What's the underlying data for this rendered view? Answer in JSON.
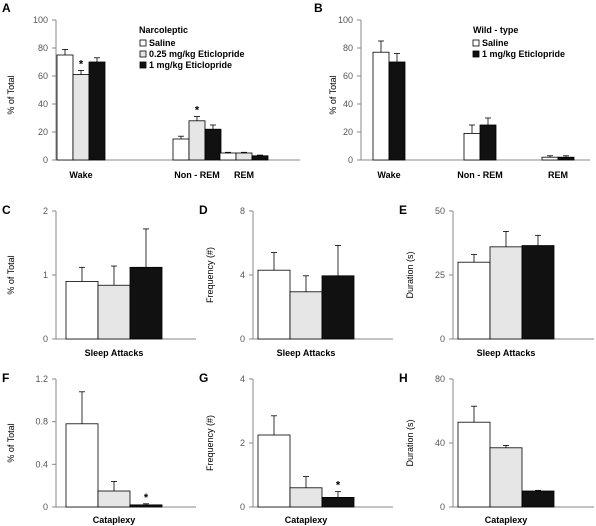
{
  "colors": {
    "saline": "#ffffff",
    "low_dose": "#e6e6e6",
    "high_dose": "#111111",
    "axis": "#888888"
  },
  "chart_data": [
    {
      "panel": "A",
      "type": "bar",
      "categories": [
        "Wake",
        "Non - REM",
        "REM"
      ],
      "ylabel": "% of Total",
      "ylim": [
        0,
        100
      ],
      "yticks": [
        "0",
        "20",
        "40",
        "60",
        "80",
        "100"
      ],
      "legend": {
        "title": "Narcoleptic",
        "placement": "top-right",
        "labels": [
          "Saline",
          "0.25 mg/kg Eticlopride",
          "1 mg/kg Eticlopride"
        ]
      },
      "series": [
        {
          "name": "Saline",
          "values": [
            75,
            15,
            5
          ],
          "errors": [
            4,
            2,
            0.5
          ]
        },
        {
          "name": "0.25 mg/kg Eticlopride",
          "values": [
            61,
            28,
            5
          ],
          "errors": [
            3,
            3,
            0.5
          ]
        },
        {
          "name": "1 mg/kg Eticlopride",
          "values": [
            70,
            22,
            3
          ],
          "errors": [
            3,
            3,
            0.5
          ]
        }
      ],
      "annotations": [
        {
          "text": "*",
          "category": 0,
          "series": 1
        },
        {
          "text": "*",
          "category": 1,
          "series": 1
        }
      ]
    },
    {
      "panel": "B",
      "type": "bar",
      "categories": [
        "Wake",
        "Non - REM",
        "REM"
      ],
      "ylabel": "% of Total",
      "ylim": [
        0,
        100
      ],
      "yticks": [
        "0",
        "20",
        "40",
        "60",
        "80",
        "100"
      ],
      "legend": {
        "title": "Wild - type",
        "placement": "top-right",
        "labels": [
          "Saline",
          "1 mg/kg Eticlopride"
        ]
      },
      "series": [
        {
          "name": "Saline",
          "values": [
            77,
            19,
            2
          ],
          "errors": [
            8,
            6,
            1
          ]
        },
        {
          "name": "1 mg/kg Eticlopride",
          "values": [
            70,
            25,
            2
          ],
          "errors": [
            6,
            5,
            1
          ]
        }
      ],
      "annotations": []
    },
    {
      "panel": "C",
      "type": "bar",
      "categories": [
        "Sleep Attacks"
      ],
      "ylabel": "% of Total",
      "ylim": [
        0,
        2
      ],
      "yticks": [
        "0",
        "1",
        "2"
      ],
      "series": [
        {
          "name": "Saline",
          "values": [
            0.9
          ],
          "errors": [
            0.22
          ]
        },
        {
          "name": "0.25 mg/kg Eticlopride",
          "values": [
            0.84
          ],
          "errors": [
            0.3
          ]
        },
        {
          "name": "1 mg/kg Eticlopride",
          "values": [
            1.12
          ],
          "errors": [
            0.6
          ]
        }
      ],
      "annotations": []
    },
    {
      "panel": "D",
      "type": "bar",
      "categories": [
        "Sleep Attacks"
      ],
      "ylabel": "Frequency (#)",
      "ylim": [
        0,
        8
      ],
      "yticks": [
        "0",
        "4",
        "8"
      ],
      "series": [
        {
          "name": "Saline",
          "values": [
            4.3
          ],
          "errors": [
            1.1
          ]
        },
        {
          "name": "0.25 mg/kg Eticlopride",
          "values": [
            2.95
          ],
          "errors": [
            1.0
          ]
        },
        {
          "name": "1 mg/kg Eticlopride",
          "values": [
            3.95
          ],
          "errors": [
            1.9
          ]
        }
      ],
      "annotations": []
    },
    {
      "panel": "E",
      "type": "bar",
      "categories": [
        "Sleep Attacks"
      ],
      "ylabel": "Duration (s)",
      "ylim": [
        0,
        50
      ],
      "yticks": [
        "0",
        "25",
        "50"
      ],
      "series": [
        {
          "name": "Saline",
          "values": [
            30
          ],
          "errors": [
            3
          ]
        },
        {
          "name": "0.25 mg/kg Eticlopride",
          "values": [
            36
          ],
          "errors": [
            6
          ]
        },
        {
          "name": "1 mg/kg Eticlopride",
          "values": [
            36.5
          ],
          "errors": [
            4
          ]
        }
      ],
      "annotations": []
    },
    {
      "panel": "F",
      "type": "bar",
      "categories": [
        "Cataplexy"
      ],
      "ylabel": "% of Total",
      "ylim": [
        0,
        1.2
      ],
      "yticks": [
        "0",
        "0.4",
        "0.8",
        "1.2"
      ],
      "series": [
        {
          "name": "Saline",
          "values": [
            0.78
          ],
          "errors": [
            0.3
          ]
        },
        {
          "name": "0.25 mg/kg Eticlopride",
          "values": [
            0.15
          ],
          "errors": [
            0.09
          ]
        },
        {
          "name": "1 mg/kg Eticlopride",
          "values": [
            0.02
          ],
          "errors": [
            0.01
          ]
        }
      ],
      "annotations": [
        {
          "text": "*",
          "category": 0,
          "series": 2
        }
      ]
    },
    {
      "panel": "G",
      "type": "bar",
      "categories": [
        "Cataplexy"
      ],
      "ylabel": "Frequency (#)",
      "ylim": [
        0,
        4
      ],
      "yticks": [
        "0",
        "2",
        "4"
      ],
      "series": [
        {
          "name": "Saline",
          "values": [
            2.25
          ],
          "errors": [
            0.6
          ]
        },
        {
          "name": "0.25 mg/kg Eticlopride",
          "values": [
            0.6
          ],
          "errors": [
            0.35
          ]
        },
        {
          "name": "1 mg/kg Eticlopride",
          "values": [
            0.3
          ],
          "errors": [
            0.18
          ]
        }
      ],
      "annotations": [
        {
          "text": "*",
          "category": 0,
          "series": 2
        }
      ]
    },
    {
      "panel": "H",
      "type": "bar",
      "categories": [
        "Cataplexy"
      ],
      "ylabel": "Duration (s)",
      "ylim": [
        0,
        80
      ],
      "yticks": [
        "0",
        "40",
        "80"
      ],
      "series": [
        {
          "name": "Saline",
          "values": [
            53
          ],
          "errors": [
            10
          ]
        },
        {
          "name": "0.25 mg/kg Eticlopride",
          "values": [
            37
          ],
          "errors": [
            1.5
          ]
        },
        {
          "name": "1 mg/kg Eticlopride",
          "values": [
            10
          ],
          "errors": [
            0.4
          ]
        }
      ],
      "annotations": []
    }
  ]
}
